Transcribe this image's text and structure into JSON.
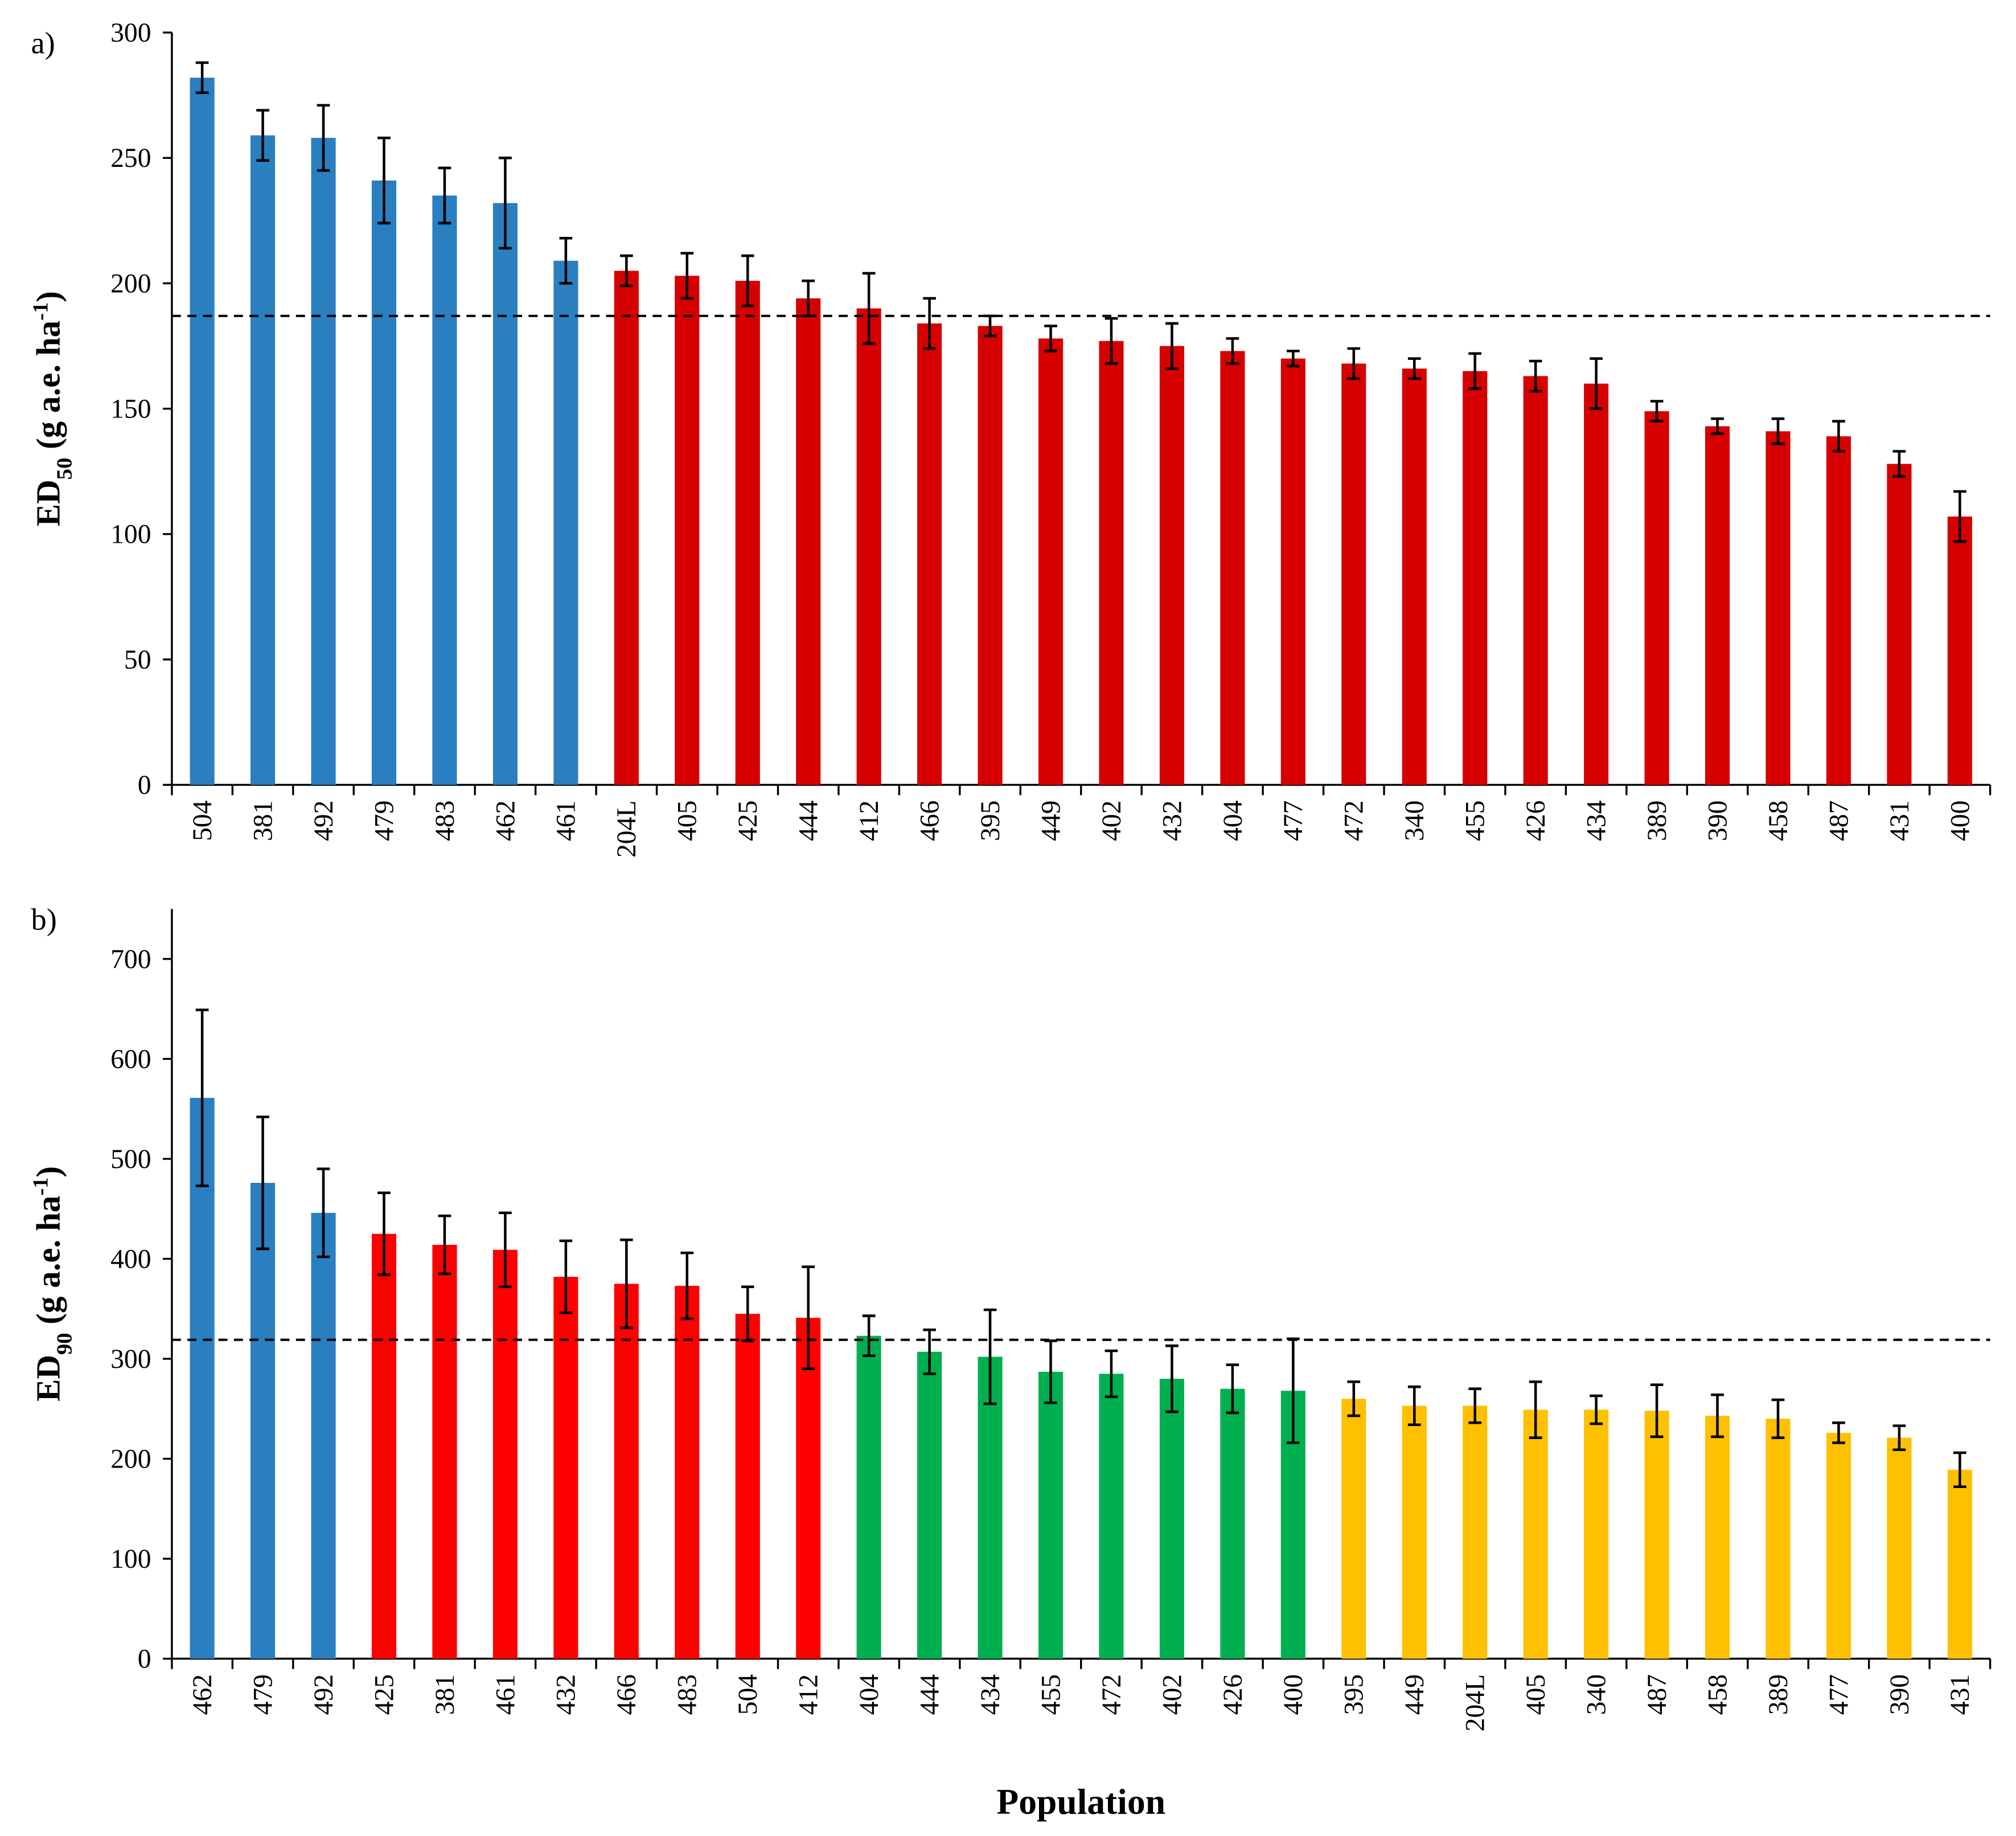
{
  "chart_data": [
    {
      "type": "bar",
      "panel": "a)",
      "ylabel": [
        "ED",
        "50",
        " (g a.e. ha",
        "-1",
        ")"
      ],
      "categories": [
        "504",
        "381",
        "492",
        "479",
        "483",
        "462",
        "461",
        "204L",
        "405",
        "425",
        "444",
        "412",
        "466",
        "395",
        "449",
        "402",
        "432",
        "404",
        "477",
        "472",
        "340",
        "455",
        "426",
        "434",
        "389",
        "390",
        "458",
        "487",
        "431",
        "400"
      ],
      "values": [
        282,
        259,
        258,
        241,
        235,
        232,
        209,
        205,
        203,
        201,
        194,
        190,
        184,
        183,
        178,
        177,
        175,
        173,
        170,
        168,
        166,
        165,
        163,
        160,
        149,
        143,
        141,
        139,
        128,
        107
      ],
      "errors": [
        6,
        10,
        13,
        17,
        11,
        18,
        9,
        6,
        9,
        10,
        7,
        14,
        10,
        4,
        5,
        9,
        9,
        5,
        3,
        6,
        4,
        7,
        6,
        10,
        4,
        3,
        5,
        6,
        5,
        10
      ],
      "colors": [
        "#2a7fc1",
        "#2a7fc1",
        "#2a7fc1",
        "#2a7fc1",
        "#2a7fc1",
        "#2a7fc1",
        "#2a7fc1",
        "#d60000",
        "#d60000",
        "#d60000",
        "#d60000",
        "#d60000",
        "#d60000",
        "#d60000",
        "#d60000",
        "#d60000",
        "#d60000",
        "#d60000",
        "#d60000",
        "#d60000",
        "#d60000",
        "#d60000",
        "#d60000",
        "#d60000",
        "#d60000",
        "#d60000",
        "#d60000",
        "#d60000",
        "#d60000",
        "#d60000"
      ],
      "reference_line": 187,
      "ylim": [
        0,
        300
      ],
      "yticks": [
        0,
        50,
        100,
        150,
        200,
        250,
        300
      ]
    },
    {
      "type": "bar",
      "panel": "b)",
      "ylabel": [
        "ED",
        "90",
        " (g a.e. ha",
        "-1",
        ")"
      ],
      "x_label": "Population",
      "categories": [
        "462",
        "479",
        "492",
        "425",
        "381",
        "461",
        "432",
        "466",
        "483",
        "504",
        "412",
        "404",
        "444",
        "434",
        "455",
        "472",
        "402",
        "426",
        "400",
        "395",
        "449",
        "204L",
        "405",
        "340",
        "487",
        "458",
        "389",
        "477",
        "390",
        "431"
      ],
      "values": [
        561,
        476,
        446,
        425,
        414,
        409,
        382,
        375,
        373,
        345,
        341,
        323,
        307,
        302,
        287,
        285,
        280,
        270,
        268,
        260,
        253,
        253,
        249,
        249,
        248,
        243,
        240,
        226,
        221,
        189
      ],
      "errors": [
        88,
        66,
        44,
        41,
        29,
        37,
        36,
        44,
        33,
        27,
        51,
        20,
        22,
        47,
        31,
        23,
        33,
        24,
        52,
        17,
        19,
        17,
        28,
        14,
        26,
        21,
        19,
        10,
        12,
        17
      ],
      "colors": [
        "#2a7fc1",
        "#2a7fc1",
        "#2a7fc1",
        "#ff0000",
        "#ff0000",
        "#ff0000",
        "#ff0000",
        "#ff0000",
        "#ff0000",
        "#ff0000",
        "#ff0000",
        "#00b050",
        "#00b050",
        "#00b050",
        "#00b050",
        "#00b050",
        "#00b050",
        "#00b050",
        "#00b050",
        "#ffc000",
        "#ffc000",
        "#ffc000",
        "#ffc000",
        "#ffc000",
        "#ffc000",
        "#ffc000",
        "#ffc000",
        "#ffc000",
        "#ffc000",
        "#ffc000"
      ],
      "reference_line": 319,
      "ylim": [
        0,
        750
      ],
      "yticks": [
        0,
        100,
        200,
        300,
        400,
        500,
        600,
        700
      ]
    }
  ]
}
